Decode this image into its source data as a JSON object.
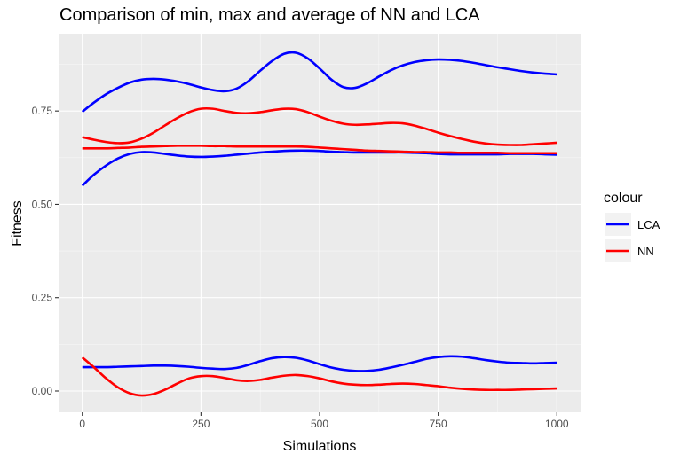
{
  "chart_data": {
    "type": "line",
    "title": "Comparison of min, max and average of NN and LCA",
    "xlabel": "Simulations",
    "ylabel": "Fitness",
    "xlim": [
      -50,
      1050
    ],
    "ylim": [
      -0.057,
      0.957
    ],
    "x_ticks": [
      0,
      250,
      500,
      750,
      1000
    ],
    "x_tick_labels": [
      "0",
      "250",
      "500",
      "750",
      "1000"
    ],
    "y_ticks": [
      0.0,
      0.25,
      0.5,
      0.75
    ],
    "y_tick_labels": [
      "0.00",
      "0.25",
      "0.50",
      "0.75"
    ],
    "grid": true,
    "legend": {
      "title": "colour",
      "position": "right",
      "entries": [
        {
          "label": "LCA",
          "color": "#0000ff"
        },
        {
          "label": "NN",
          "color": "#ff0000"
        }
      ]
    },
    "x": [
      0,
      25,
      50,
      75,
      100,
      125,
      150,
      175,
      200,
      225,
      250,
      275,
      300,
      325,
      350,
      375,
      400,
      425,
      450,
      475,
      500,
      525,
      550,
      575,
      600,
      625,
      650,
      675,
      700,
      725,
      750,
      775,
      800,
      825,
      850,
      875,
      900,
      925,
      950,
      975,
      1000
    ],
    "series": [
      {
        "name": "LCA",
        "color": "#0000ff",
        "values": [
          0.748,
          0.773,
          0.795,
          0.812,
          0.826,
          0.834,
          0.836,
          0.834,
          0.829,
          0.822,
          0.813,
          0.806,
          0.803,
          0.81,
          0.83,
          0.858,
          0.884,
          0.903,
          0.906,
          0.891,
          0.864,
          0.834,
          0.814,
          0.812,
          0.824,
          0.842,
          0.859,
          0.872,
          0.881,
          0.886,
          0.888,
          0.887,
          0.884,
          0.879,
          0.873,
          0.867,
          0.862,
          0.857,
          0.853,
          0.85,
          0.848
        ]
      },
      {
        "name": "LCA",
        "color": "#0000ff",
        "values": [
          0.55,
          0.58,
          0.604,
          0.623,
          0.635,
          0.64,
          0.639,
          0.635,
          0.631,
          0.628,
          0.627,
          0.628,
          0.63,
          0.633,
          0.636,
          0.639,
          0.641,
          0.643,
          0.644,
          0.644,
          0.643,
          0.641,
          0.64,
          0.639,
          0.639,
          0.639,
          0.639,
          0.639,
          0.638,
          0.637,
          0.635,
          0.634,
          0.634,
          0.634,
          0.634,
          0.634,
          0.635,
          0.635,
          0.635,
          0.634,
          0.633
        ]
      },
      {
        "name": "LCA",
        "color": "#0000ff",
        "values": [
          0.064,
          0.064,
          0.064,
          0.065,
          0.066,
          0.067,
          0.068,
          0.068,
          0.067,
          0.065,
          0.062,
          0.06,
          0.059,
          0.062,
          0.07,
          0.08,
          0.088,
          0.091,
          0.089,
          0.082,
          0.072,
          0.063,
          0.057,
          0.054,
          0.054,
          0.057,
          0.063,
          0.07,
          0.078,
          0.086,
          0.091,
          0.093,
          0.092,
          0.088,
          0.083,
          0.079,
          0.076,
          0.075,
          0.074,
          0.075,
          0.076
        ]
      },
      {
        "name": "NN",
        "color": "#ff0000",
        "values": [
          0.68,
          0.673,
          0.667,
          0.664,
          0.666,
          0.676,
          0.692,
          0.712,
          0.731,
          0.747,
          0.756,
          0.756,
          0.75,
          0.745,
          0.744,
          0.747,
          0.752,
          0.756,
          0.755,
          0.747,
          0.735,
          0.724,
          0.716,
          0.713,
          0.714,
          0.716,
          0.718,
          0.717,
          0.711,
          0.702,
          0.692,
          0.683,
          0.675,
          0.668,
          0.663,
          0.66,
          0.659,
          0.659,
          0.661,
          0.663,
          0.665
        ]
      },
      {
        "name": "NN",
        "color": "#ff0000",
        "values": [
          0.65,
          0.65,
          0.65,
          0.651,
          0.652,
          0.654,
          0.655,
          0.656,
          0.657,
          0.657,
          0.657,
          0.656,
          0.656,
          0.655,
          0.655,
          0.655,
          0.655,
          0.655,
          0.655,
          0.654,
          0.652,
          0.65,
          0.648,
          0.646,
          0.644,
          0.643,
          0.642,
          0.641,
          0.64,
          0.64,
          0.639,
          0.639,
          0.638,
          0.638,
          0.638,
          0.638,
          0.637,
          0.637,
          0.637,
          0.637,
          0.637
        ]
      },
      {
        "name": "NN",
        "color": "#ff0000",
        "values": [
          0.09,
          0.063,
          0.034,
          0.01,
          -0.006,
          -0.012,
          -0.008,
          0.004,
          0.02,
          0.034,
          0.04,
          0.04,
          0.035,
          0.029,
          0.027,
          0.03,
          0.036,
          0.041,
          0.043,
          0.04,
          0.034,
          0.026,
          0.02,
          0.017,
          0.016,
          0.017,
          0.019,
          0.02,
          0.019,
          0.016,
          0.013,
          0.009,
          0.006,
          0.004,
          0.003,
          0.003,
          0.003,
          0.004,
          0.005,
          0.006,
          0.007
        ]
      }
    ]
  }
}
